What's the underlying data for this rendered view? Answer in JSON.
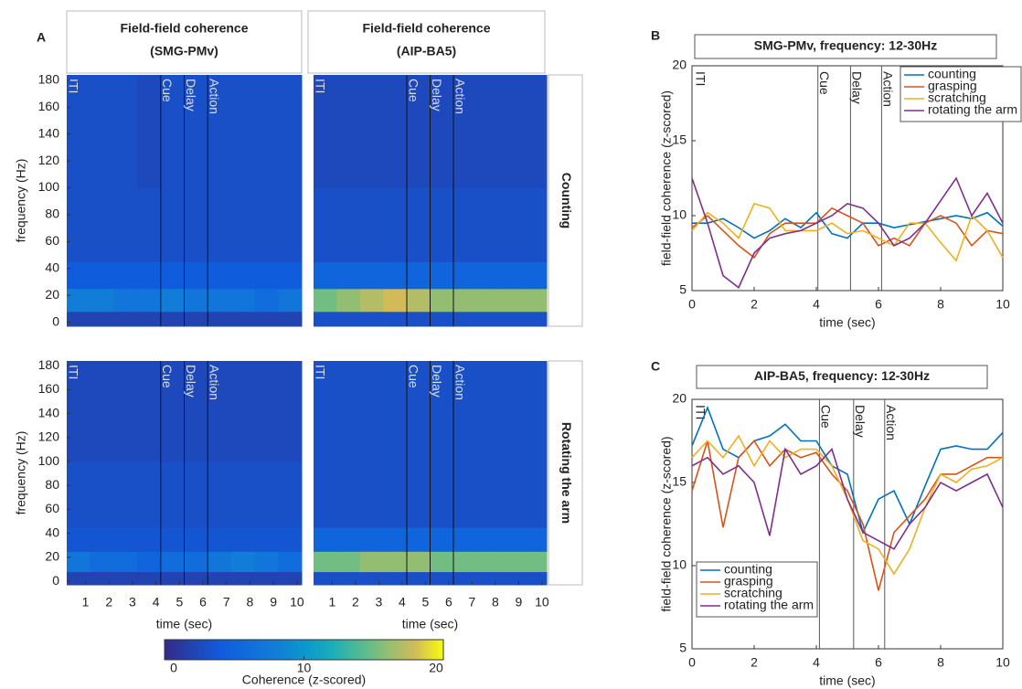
{
  "panel_labels": [
    "A",
    "B",
    "C"
  ],
  "colorbar": {
    "lim": [
      0,
      20
    ],
    "ticks": [
      0,
      10,
      20
    ],
    "label": "Coherence (z-scored)",
    "colormap": "parula"
  },
  "chart_data": [
    {
      "type": "heatmap",
      "title": [
        "Field-field coherence",
        "(SMG-PMv)"
      ],
      "ylabel": "frequency (Hz)",
      "xlim": [
        0.2,
        10.2
      ],
      "ylim": [
        -3,
        184
      ],
      "yticks": [
        0,
        20,
        40,
        60,
        80,
        100,
        120,
        140,
        160,
        180
      ],
      "x_bins": [
        0.2,
        1.2,
        2.2,
        3.2,
        4.2,
        5.2,
        6.2,
        7.2,
        8.2,
        9.2,
        10.2
      ],
      "y_bins": [
        -3,
        8,
        25,
        45,
        100,
        184
      ],
      "event_lines": [
        4.2,
        5.2,
        6.2
      ],
      "event_labels": [
        "ITI",
        "Cue",
        "Delay",
        "Action"
      ],
      "z": [
        [
          2,
          2,
          2,
          2,
          2,
          2,
          2,
          2,
          2,
          2
        ],
        [
          8,
          8,
          7,
          7,
          8,
          7,
          7,
          7,
          6,
          7
        ],
        [
          4,
          4,
          4,
          4,
          4,
          4,
          4,
          4,
          4,
          4
        ],
        [
          3,
          3,
          3,
          3,
          3,
          3,
          3,
          3,
          3,
          3
        ],
        [
          3,
          3,
          3,
          2.5,
          3,
          3,
          3,
          3,
          3,
          3
        ]
      ]
    },
    {
      "type": "heatmap",
      "title": [
        "Field-field coherence",
        "(AIP-BA5)"
      ],
      "row_label": "Counting",
      "xlim": [
        0.2,
        10.2
      ],
      "ylim": [
        -3,
        184
      ],
      "x_bins": [
        0.2,
        1.2,
        2.2,
        3.2,
        4.2,
        5.2,
        6.2,
        7.2,
        8.2,
        9.2,
        10.2
      ],
      "y_bins": [
        -3,
        8,
        25,
        45,
        100,
        184
      ],
      "event_lines": [
        4.2,
        5.2,
        6.2
      ],
      "event_labels": [
        "ITI",
        "Cue",
        "Delay",
        "Action"
      ],
      "z": [
        [
          3,
          3,
          3,
          3,
          3,
          3,
          3,
          3,
          3,
          3
        ],
        [
          15,
          16,
          17,
          18,
          17,
          16,
          16,
          16,
          16,
          16
        ],
        [
          5,
          5,
          5,
          5,
          5,
          5,
          5,
          5,
          5,
          5
        ],
        [
          3,
          3,
          3,
          3,
          3,
          3,
          3,
          3,
          3,
          3
        ],
        [
          2.5,
          2.5,
          2.5,
          2.5,
          2.5,
          2.5,
          2.5,
          2.5,
          2.5,
          2.5
        ]
      ]
    },
    {
      "type": "heatmap",
      "ylabel": "frequency (Hz)",
      "xlabel": "time (sec)",
      "xlim": [
        0.2,
        10.2
      ],
      "ylim": [
        -3,
        184
      ],
      "yticks": [
        0,
        20,
        40,
        60,
        80,
        100,
        120,
        140,
        160,
        180
      ],
      "xticks": [
        1,
        2,
        3,
        4,
        5,
        6,
        7,
        8,
        9,
        10
      ],
      "x_bins": [
        0.2,
        1.2,
        2.2,
        3.2,
        4.2,
        5.2,
        6.2,
        7.2,
        8.2,
        9.2,
        10.2
      ],
      "y_bins": [
        -3,
        8,
        25,
        45,
        100,
        184
      ],
      "event_lines": [
        4.2,
        5.2,
        6.2
      ],
      "event_labels": [
        "ITI",
        "Cue",
        "Delay",
        "Action"
      ],
      "z": [
        [
          2,
          2,
          2,
          2,
          2,
          2,
          2,
          2,
          2,
          2
        ],
        [
          7,
          6,
          6,
          5,
          6,
          6,
          7,
          8,
          7,
          6
        ],
        [
          3.5,
          3.5,
          3.5,
          3.5,
          3.5,
          3.5,
          3.5,
          3.5,
          3.5,
          3.5
        ],
        [
          3,
          3,
          3,
          3,
          3,
          3,
          3,
          3,
          3,
          3
        ],
        [
          2.5,
          2.5,
          2.5,
          2.5,
          2.5,
          2.5,
          2.5,
          2.5,
          2.5,
          2.5
        ]
      ]
    },
    {
      "type": "heatmap",
      "row_label": "Rotating the arm",
      "xlabel": "time (sec)",
      "xlim": [
        0.2,
        10.2
      ],
      "ylim": [
        -3,
        184
      ],
      "xticks": [
        1,
        2,
        3,
        4,
        5,
        6,
        7,
        8,
        9,
        10
      ],
      "x_bins": [
        0.2,
        1.2,
        2.2,
        3.2,
        4.2,
        5.2,
        6.2,
        7.2,
        8.2,
        9.2,
        10.2
      ],
      "y_bins": [
        -3,
        8,
        25,
        45,
        100,
        184
      ],
      "event_lines": [
        4.2,
        5.2,
        6.2
      ],
      "event_labels": [
        "ITI",
        "Cue",
        "Delay",
        "Action"
      ],
      "z": [
        [
          3,
          3,
          3,
          3,
          3,
          3,
          3,
          3,
          3,
          3
        ],
        [
          15,
          15,
          16,
          16,
          16,
          15,
          15,
          15,
          15,
          15
        ],
        [
          5,
          5,
          5,
          5,
          5,
          5,
          5,
          5,
          5,
          5
        ],
        [
          3,
          3,
          3,
          3,
          3,
          3,
          3,
          3,
          3,
          3
        ],
        [
          3,
          3,
          3,
          3,
          3,
          3,
          3,
          3,
          3,
          3
        ]
      ]
    },
    {
      "type": "line",
      "title": "SMG-PMv, frequency: 12-30Hz",
      "xlabel": "time (sec)",
      "ylabel": "field-field coherence (z-scored)",
      "xlim": [
        0,
        10
      ],
      "ylim": [
        5,
        20
      ],
      "xticks": [
        0,
        2,
        4,
        6,
        8,
        10
      ],
      "yticks": [
        5,
        10,
        15,
        20
      ],
      "legend": "upper right",
      "event_lines": [
        4.05,
        5.1,
        6.1
      ],
      "event_labels": [
        "ITI",
        "Cue",
        "Delay",
        "Action"
      ],
      "x": [
        0,
        0.5,
        1,
        1.5,
        2,
        2.5,
        3,
        3.5,
        4,
        4.5,
        5,
        5.5,
        6,
        6.5,
        7,
        7.5,
        8,
        8.5,
        9,
        9.5,
        10
      ],
      "series": [
        {
          "name": "counting",
          "color": "#0072bd",
          "values": [
            9.5,
            9.5,
            9.8,
            9.2,
            8.5,
            9.0,
            9.8,
            9.2,
            10.2,
            8.8,
            8.5,
            9.5,
            9.5,
            9.2,
            9.4,
            9.6,
            9.8,
            10.0,
            9.8,
            10.2,
            9.3
          ]
        },
        {
          "name": "grasping",
          "color": "#d95319",
          "values": [
            9.2,
            10,
            9.0,
            8,
            7.2,
            8.8,
            9.5,
            9.5,
            9.5,
            10.5,
            10.0,
            9.5,
            8.0,
            8.5,
            8.0,
            9.5,
            10.0,
            9.5,
            8.0,
            9.0,
            8.8
          ]
        },
        {
          "name": "scratching",
          "color": "#edb120",
          "values": [
            9.0,
            10.2,
            9.5,
            8.5,
            10.8,
            10.5,
            9.0,
            9.0,
            9.0,
            9.5,
            8.8,
            9.0,
            8.5,
            8.0,
            9.5,
            9.5,
            8.2,
            7.0,
            10.0,
            9.0,
            7.2
          ]
        },
        {
          "name": "rotating the arm",
          "color": "#7e2f8e",
          "values": [
            12.5,
            9.5,
            6.0,
            5.2,
            7.5,
            8.5,
            8.8,
            9.0,
            9.5,
            10.0,
            10.8,
            10.5,
            9.5,
            8.0,
            8.5,
            9.5,
            11.0,
            12.5,
            10.0,
            11.5,
            9.5
          ]
        }
      ]
    },
    {
      "type": "line",
      "title": "AIP-BA5, frequency: 12-30Hz",
      "xlabel": "time (sec)",
      "ylabel": "field-field coherence (z-scored)",
      "xlim": [
        0,
        10
      ],
      "ylim": [
        5,
        20
      ],
      "xticks": [
        0,
        2,
        4,
        6,
        8,
        10
      ],
      "yticks": [
        5,
        10,
        15,
        20
      ],
      "legend": "lower left",
      "event_lines": [
        4.1,
        5.2,
        6.2
      ],
      "event_labels": [
        "ITI",
        "Cue",
        "Delay",
        "Action"
      ],
      "x": [
        0,
        0.5,
        1,
        1.5,
        2,
        2.5,
        3,
        3.5,
        4,
        4.5,
        5,
        5.5,
        6,
        6.5,
        7,
        7.5,
        8,
        8.5,
        9,
        9.5,
        10
      ],
      "series": [
        {
          "name": "counting",
          "color": "#0072bd",
          "values": [
            17.2,
            19.5,
            17.0,
            16.5,
            17.5,
            17.8,
            18.5,
            17.5,
            17.5,
            16.0,
            15.5,
            12.0,
            14.0,
            14.5,
            12.5,
            14.8,
            17.0,
            17.2,
            17.0,
            17.0,
            18.0
          ]
        },
        {
          "name": "grasping",
          "color": "#d95319",
          "values": [
            14.5,
            17.5,
            12.3,
            16.5,
            17.5,
            16.0,
            17.0,
            16.5,
            16.8,
            15.5,
            14.5,
            12.5,
            8.5,
            12.0,
            13.0,
            14.0,
            15.5,
            15.5,
            16.0,
            16.5,
            16.5
          ]
        },
        {
          "name": "scratching",
          "color": "#edb120",
          "values": [
            16.5,
            17.5,
            16.5,
            17.8,
            16.0,
            17.5,
            16.5,
            17.0,
            17.0,
            16.0,
            14.0,
            11.5,
            11.0,
            9.5,
            11.0,
            13.5,
            15.5,
            15.0,
            15.8,
            16.0,
            16.5
          ]
        },
        {
          "name": "rotating the arm",
          "color": "#7e2f8e",
          "values": [
            16.0,
            16.5,
            15.5,
            16.0,
            15.0,
            11.8,
            17.0,
            15.5,
            16.0,
            17.0,
            14.0,
            12.0,
            11.5,
            11.0,
            12.5,
            13.5,
            15.0,
            14.5,
            15.0,
            15.5,
            13.5
          ]
        }
      ]
    }
  ]
}
